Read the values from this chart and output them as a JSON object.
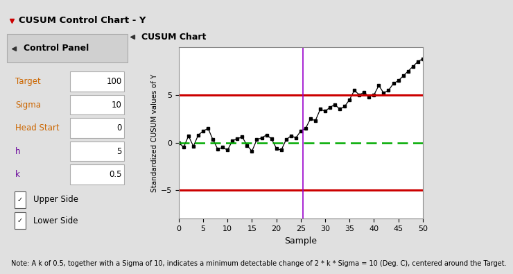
{
  "title": "CUSUM Control Chart - Y",
  "chart_title": "CUSUM Chart",
  "ylabel": "Standardized CUSUM values of Y",
  "xlabel": "Sample",
  "xlim": [
    0,
    50
  ],
  "ylim": [
    -8,
    10
  ],
  "yticks": [
    -5,
    0,
    5
  ],
  "xticks": [
    0,
    5,
    10,
    15,
    20,
    25,
    30,
    35,
    40,
    45,
    50
  ],
  "upper_limit": 5,
  "lower_limit": -5,
  "vline_x": 25.5,
  "vline_color": "#9900cc",
  "upper_line_color": "#cc0000",
  "lower_line_color": "#cc0000",
  "center_line_color": "#00aa00",
  "data_line_color": "#000000",
  "data_marker_color": "#000000",
  "samples": [
    0,
    1,
    2,
    3,
    4,
    5,
    6,
    7,
    8,
    9,
    10,
    11,
    12,
    13,
    14,
    15,
    16,
    17,
    18,
    19,
    20,
    21,
    22,
    23,
    24,
    25,
    26,
    27,
    28,
    29,
    30,
    31,
    32,
    33,
    34,
    35,
    36,
    37,
    38,
    39,
    40,
    41,
    42,
    43,
    44,
    45,
    46,
    47,
    48,
    49,
    50
  ],
  "cusum_values": [
    0,
    -0.5,
    0.7,
    -0.4,
    0.8,
    1.2,
    1.5,
    0.3,
    -0.7,
    -0.5,
    -0.8,
    0.2,
    0.4,
    0.6,
    -0.3,
    -0.9,
    0.3,
    0.5,
    0.8,
    0.4,
    -0.6,
    -0.8,
    0.3,
    0.7,
    0.5,
    1.2,
    1.5,
    2.5,
    2.3,
    3.5,
    3.3,
    3.7,
    4.0,
    3.5,
    3.8,
    4.5,
    5.5,
    5.0,
    5.3,
    4.8,
    5.0,
    6.0,
    5.2,
    5.5,
    6.2,
    6.5,
    7.0,
    7.5,
    8.0,
    8.5,
    8.8
  ],
  "panel_bg": "#e0e0e0",
  "chart_bg": "#ffffff",
  "note_text": "Note: A k of 0.5, together with a Sigma of 10, indicates a minimum detectable change of 2 * k * Sigma = 10 (Deg. C), centered around the Target.",
  "title_bg": "#d0d0d0",
  "panel_header_bg": "#d0d0d0",
  "fields": [
    {
      "label": "Target",
      "value": "100",
      "color": "#cc6600"
    },
    {
      "label": "Sigma",
      "value": "10",
      "color": "#cc6600"
    },
    {
      "label": "Head Start",
      "value": "0",
      "color": "#cc6600"
    },
    {
      "label": "h",
      "value": "5",
      "color": "#660099"
    },
    {
      "label": "k",
      "value": "0.5",
      "color": "#660099"
    }
  ]
}
